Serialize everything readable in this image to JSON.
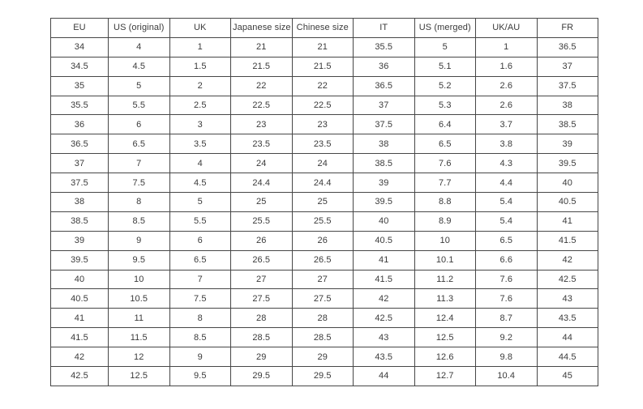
{
  "colors": {
    "bg": "#ffffff",
    "border": "#474747",
    "text": "#3b3b3b"
  },
  "chart_data": {
    "type": "table",
    "columns": [
      "EU",
      "US (original)",
      "UK",
      "Japanese size",
      "Chinese size",
      "IT",
      "US (merged)",
      "UK/AU",
      "FR"
    ],
    "rows": [
      [
        "34",
        "4",
        "1",
        "21",
        "21",
        "35.5",
        "5",
        "1",
        "36.5"
      ],
      [
        "34.5",
        "4.5",
        "1.5",
        "21.5",
        "21.5",
        "36",
        "5.1",
        "1.6",
        "37"
      ],
      [
        "35",
        "5",
        "2",
        "22",
        "22",
        "36.5",
        "5.2",
        "2.6",
        "37.5"
      ],
      [
        "35.5",
        "5.5",
        "2.5",
        "22.5",
        "22.5",
        "37",
        "5.3",
        "2.6",
        "38"
      ],
      [
        "36",
        "6",
        "3",
        "23",
        "23",
        "37.5",
        "6.4",
        "3.7",
        "38.5"
      ],
      [
        "36.5",
        "6.5",
        "3.5",
        "23.5",
        "23.5",
        "38",
        "6.5",
        "3.8",
        "39"
      ],
      [
        "37",
        "7",
        "4",
        "24",
        "24",
        "38.5",
        "7.6",
        "4.3",
        "39.5"
      ],
      [
        "37.5",
        "7.5",
        "4.5",
        "24.4",
        "24.4",
        "39",
        "7.7",
        "4.4",
        "40"
      ],
      [
        "38",
        "8",
        "5",
        "25",
        "25",
        "39.5",
        "8.8",
        "5.4",
        "40.5"
      ],
      [
        "38.5",
        "8.5",
        "5.5",
        "25.5",
        "25.5",
        "40",
        "8.9",
        "5.4",
        "41"
      ],
      [
        "39",
        "9",
        "6",
        "26",
        "26",
        "40.5",
        "10",
        "6.5",
        "41.5"
      ],
      [
        "39.5",
        "9.5",
        "6.5",
        "26.5",
        "26.5",
        "41",
        "10.1",
        "6.6",
        "42"
      ],
      [
        "40",
        "10",
        "7",
        "27",
        "27",
        "41.5",
        "11.2",
        "7.6",
        "42.5"
      ],
      [
        "40.5",
        "10.5",
        "7.5",
        "27.5",
        "27.5",
        "42",
        "11.3",
        "7.6",
        "43"
      ],
      [
        "41",
        "11",
        "8",
        "28",
        "28",
        "42.5",
        "12.4",
        "8.7",
        "43.5"
      ],
      [
        "41.5",
        "11.5",
        "8.5",
        "28.5",
        "28.5",
        "43",
        "12.5",
        "9.2",
        "44"
      ],
      [
        "42",
        "12",
        "9",
        "29",
        "29",
        "43.5",
        "12.6",
        "9.8",
        "44.5"
      ],
      [
        "42.5",
        "12.5",
        "9.5",
        "29.5",
        "29.5",
        "44",
        "12.7",
        "10.4",
        "45"
      ]
    ]
  }
}
